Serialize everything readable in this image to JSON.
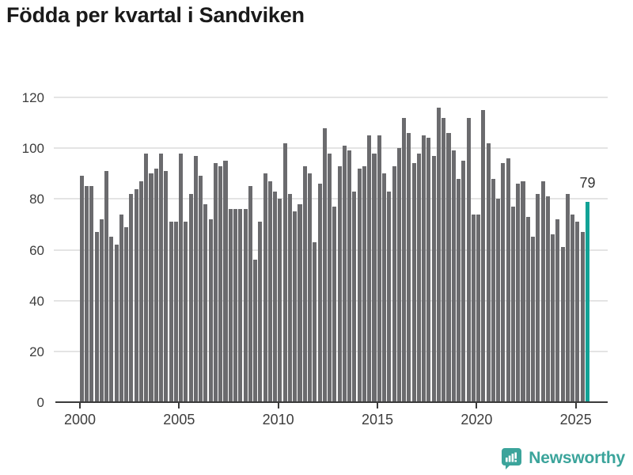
{
  "title": "Födda per kvartal i Sandviken",
  "chart_data": {
    "type": "bar",
    "title": "Födda per kvartal i Sandviken",
    "xlabel": "",
    "ylabel": "",
    "x_unit": "quarter",
    "start_year": 2000,
    "start_quarter": 1,
    "values": [
      89,
      85,
      85,
      67,
      72,
      91,
      65,
      62,
      74,
      69,
      82,
      84,
      87,
      98,
      90,
      92,
      98,
      91,
      71,
      71,
      98,
      71,
      82,
      97,
      89,
      78,
      72,
      94,
      93,
      95,
      76,
      76,
      76,
      76,
      85,
      56,
      71,
      90,
      87,
      83,
      80,
      102,
      82,
      75,
      78,
      93,
      90,
      63,
      86,
      108,
      98,
      77,
      93,
      101,
      99,
      83,
      92,
      93,
      105,
      98,
      105,
      90,
      83,
      93,
      100,
      112,
      106,
      94,
      98,
      105,
      104,
      97,
      116,
      112,
      106,
      99,
      88,
      95,
      112,
      74,
      74,
      115,
      102,
      88,
      80,
      94,
      96,
      77,
      86,
      87,
      73,
      65,
      82,
      87,
      81,
      66,
      72,
      61,
      82,
      74,
      71,
      67,
      79
    ],
    "highlight_last_bar": true,
    "highlight_value_label": "79",
    "x_tick_years": [
      2000,
      2005,
      2010,
      2015,
      2020,
      2025
    ],
    "y_ticks": [
      0,
      20,
      40,
      60,
      80,
      100,
      120
    ],
    "ylim": [
      0,
      120
    ],
    "grid": "horizontal",
    "legend": "none",
    "bar_color": "#6b6b6e",
    "highlight_color": "#12a296",
    "grid_color": "#e4e4e4",
    "axis_color": "#3a3a3a",
    "label_color": "#3d3d3d"
  },
  "branding": {
    "logo_text": "Newsworthy",
    "logo_color": "#3ba49b",
    "logo_icon": "bar-chart-speech-bubble-icon"
  }
}
